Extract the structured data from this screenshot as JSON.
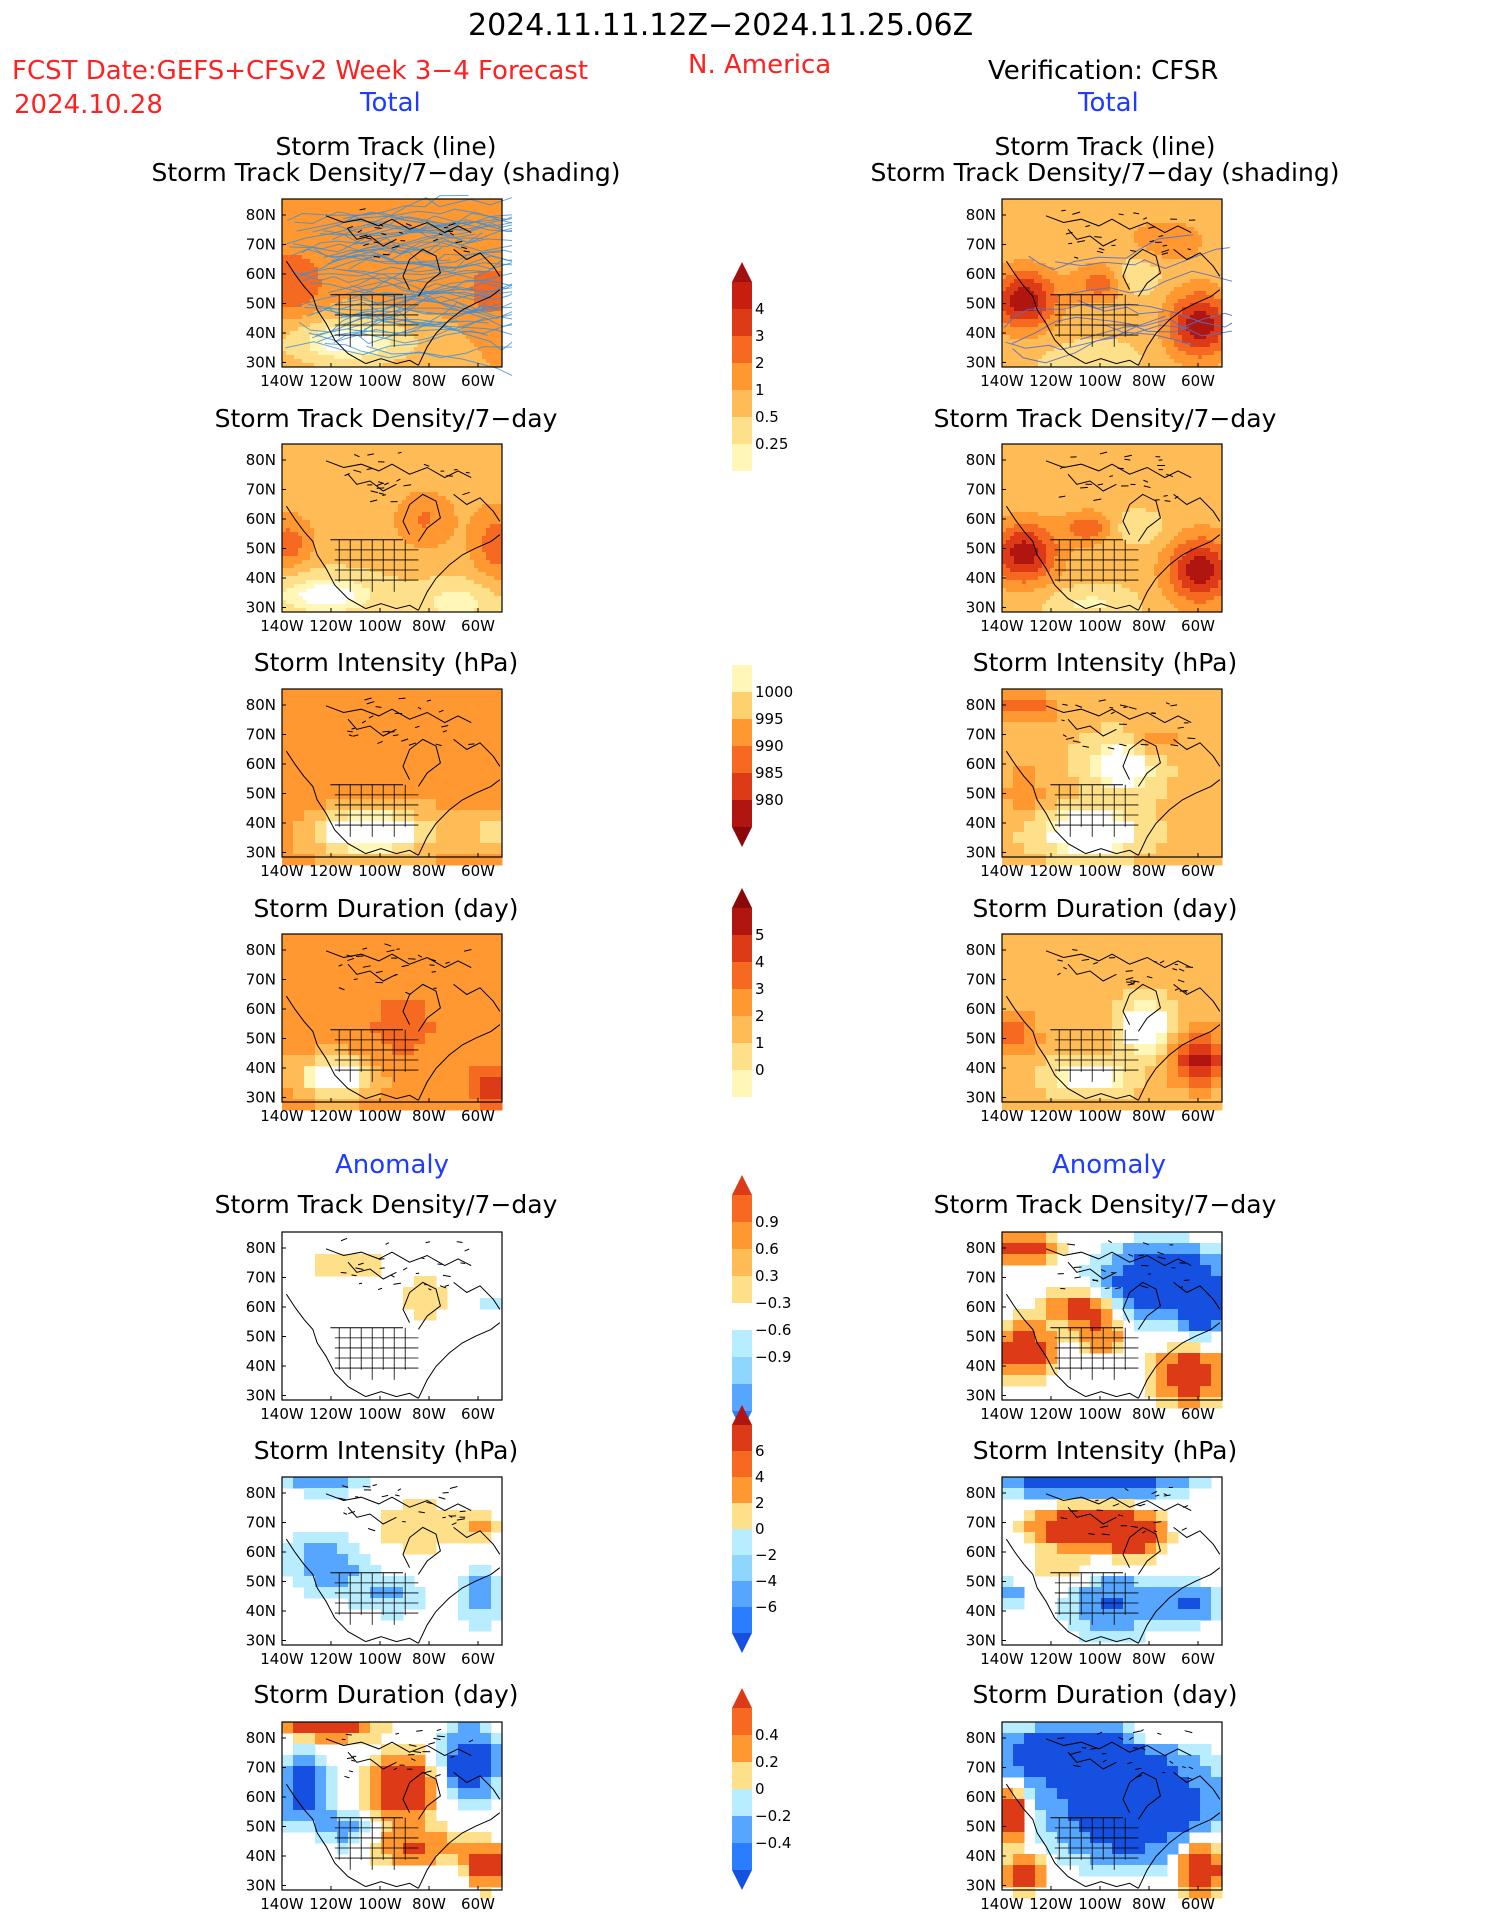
{
  "header": {
    "period": "2024.11.11.12Z−2024.11.25.06Z",
    "fcst_label": "FCST Date:GEFS+CFSv2 Week 3−4 Forecast",
    "fcst_date": "2024.10.28",
    "region": "N. America",
    "verification": "Verification: CFSR",
    "total_left": "Total",
    "total_right": "Total",
    "anomaly_left": "Anomaly",
    "anomaly_right": "Anomaly"
  },
  "panel_titles": {
    "track_line": "Storm Track (line)",
    "track_shading": "Storm Track Density/7−day (shading)",
    "density": "Storm Track Density/7−day",
    "intensity": "Storm Intensity (hPa)",
    "duration": "Storm Duration (day)"
  },
  "axes": {
    "lat_labels": [
      "80N",
      "70N",
      "60N",
      "50N",
      "40N",
      "30N"
    ],
    "lon_labels": [
      "140W",
      "120W",
      "100W",
      "80W",
      "60W"
    ]
  },
  "colorbars": {
    "density_total": [
      "0.25",
      "0.5",
      "1",
      "2",
      "3",
      "4"
    ],
    "intensity_total": [
      "1000",
      "995",
      "990",
      "985",
      "980"
    ],
    "duration_total": [
      "0",
      "1",
      "2",
      "3",
      "4",
      "5"
    ],
    "density_anom": [
      "0.9",
      "0.6",
      "0.3",
      "−0.3",
      "−0.6",
      "−0.9"
    ],
    "intensity_anom": [
      "6",
      "4",
      "2",
      "0",
      "−2",
      "−4",
      "−6"
    ],
    "duration_anom": [
      "0.4",
      "0.2",
      "0",
      "−0.2",
      "−0.4"
    ]
  },
  "colors": {
    "warm": [
      "#fff6b8",
      "#ffe08a",
      "#ffbb55",
      "#ff9830",
      "#f56a20",
      "#dd3a18",
      "#b01510",
      "#8a0808"
    ],
    "cool": [
      "#ffffff",
      "#b8ecff",
      "#8fd6ff",
      "#56a6ff",
      "#2a7dff",
      "#1550e0"
    ],
    "track_line": "#3c8fd8"
  }
}
